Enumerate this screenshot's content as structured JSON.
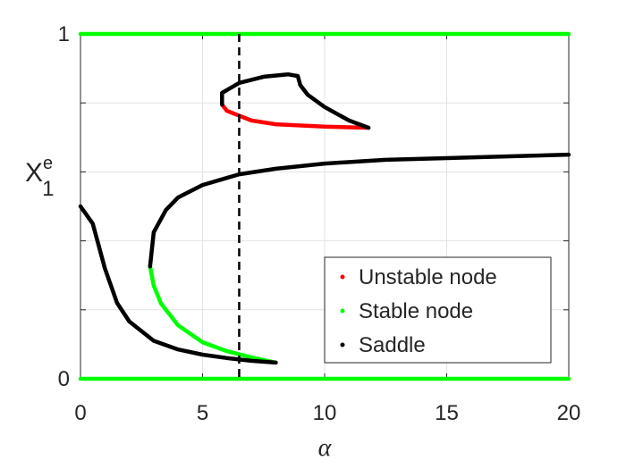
{
  "chart_data": {
    "type": "line",
    "xlabel": "α",
    "ylabel": "X",
    "ylabel_sup": "e",
    "ylabel_sub": "1",
    "xlim": [
      0,
      20
    ],
    "xticks": [
      0,
      5,
      10,
      15,
      20
    ],
    "ylim": [
      0,
      1
    ],
    "yticks": [
      0,
      {
        "value": 0.2,
        "label": null
      },
      {
        "value": 0.4,
        "label": null
      },
      {
        "value": 0.6,
        "label": null
      },
      {
        "value": 0.8,
        "label": null
      },
      1
    ],
    "grid": true,
    "legend": "lower right",
    "vline_x": 6.5,
    "series": [
      {
        "name": "Unstable node",
        "color": "#ff0000",
        "x": [
          5.8,
          6,
          7,
          8,
          10,
          11.8
        ],
        "values": [
          0.795,
          0.777,
          0.749,
          0.738,
          0.731,
          0.728
        ]
      },
      {
        "name": "Stable node",
        "color": "#00ff00",
        "x": [
          0,
          20,
          null,
          0,
          20,
          null,
          8,
          7,
          6,
          5,
          4,
          3.3,
          3,
          2.85
        ],
        "values": [
          1,
          1,
          null,
          0,
          0,
          null,
          0.047,
          0.062,
          0.08,
          0.106,
          0.155,
          0.218,
          0.27,
          0.326
        ]
      },
      {
        "name": "Saddle",
        "color": "#000000",
        "x": [
          0,
          0.5,
          1,
          1.5,
          2,
          3,
          4,
          5,
          6,
          7,
          8,
          null,
          2.85,
          3,
          3.5,
          4,
          5,
          6.5,
          8,
          10,
          12.5,
          15,
          20,
          null,
          11.8,
          11,
          10,
          9.3,
          9,
          8.9,
          8.5,
          7.5,
          6.5,
          5.8,
          5.8
        ],
        "values": [
          0.5,
          0.45,
          0.32,
          0.22,
          0.166,
          0.11,
          0.085,
          0.07,
          0.06,
          0.052,
          0.047,
          null,
          0.326,
          0.425,
          0.49,
          0.526,
          0.562,
          0.593,
          0.609,
          0.624,
          0.635,
          0.64,
          0.65,
          null,
          0.728,
          0.749,
          0.788,
          0.824,
          0.852,
          0.878,
          0.883,
          0.876,
          0.858,
          0.829,
          0.795
        ]
      }
    ]
  }
}
